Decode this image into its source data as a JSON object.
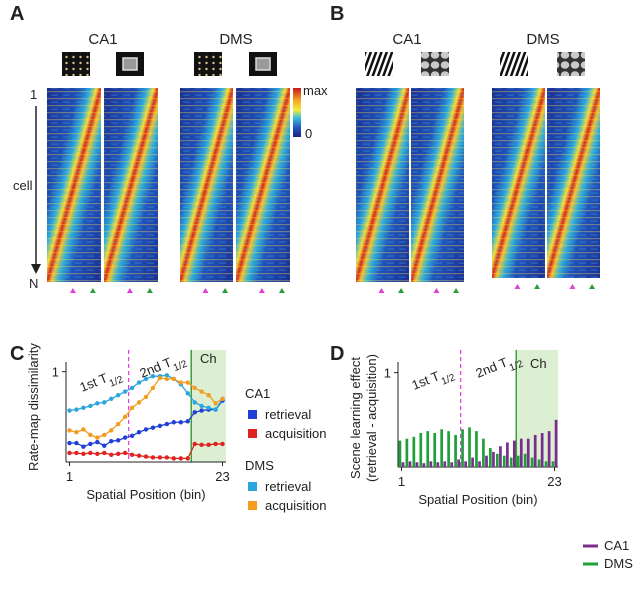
{
  "panel_a": {
    "label": "A",
    "groups": [
      "CA1",
      "DMS"
    ],
    "colorbar": {
      "max": "max",
      "min": "0"
    },
    "cell_axis": {
      "first": "1",
      "label": "cell",
      "last": "N"
    }
  },
  "panel_b": {
    "label": "B",
    "groups": [
      "CA1",
      "DMS"
    ]
  },
  "chart_data": [
    {
      "panel_label": "C",
      "type": "line",
      "x": [
        1,
        2,
        3,
        4,
        5,
        6,
        7,
        8,
        9,
        10,
        11,
        12,
        13,
        14,
        15,
        16,
        17,
        18,
        19,
        20,
        21,
        22,
        23
      ],
      "xlim": [
        0.5,
        23.5
      ],
      "xticks": [
        1,
        23
      ],
      "ylim": [
        0,
        1.24
      ],
      "yticks": [
        1
      ],
      "xlabel": "Spatial Position (bin)",
      "ylabel": "Rate-map dissimilarity",
      "annotations": [
        {
          "text": "1st T",
          "sub": "1/2"
        },
        {
          "text": "2nd T",
          "sub": "1/2"
        },
        {
          "text": "Ch"
        }
      ],
      "half_line_x": 9.5,
      "choice_start_x": 18.5,
      "series_groups": [
        {
          "name": "CA1",
          "series": [
            {
              "name": "retrieval",
              "color": "#1f3fd6",
              "values": [
                0.21,
                0.21,
                0.17,
                0.2,
                0.22,
                0.18,
                0.23,
                0.24,
                0.27,
                0.29,
                0.33,
                0.36,
                0.38,
                0.4,
                0.42,
                0.44,
                0.44,
                0.45,
                0.55,
                0.57,
                0.58,
                0.58,
                0.68
              ]
            },
            {
              "name": "acquisition",
              "color": "#e0231f",
              "values": [
                0.1,
                0.1,
                0.09,
                0.1,
                0.09,
                0.1,
                0.08,
                0.09,
                0.1,
                0.08,
                0.07,
                0.06,
                0.05,
                0.05,
                0.05,
                0.04,
                0.04,
                0.04,
                0.2,
                0.19,
                0.19,
                0.2,
                0.2
              ]
            }
          ]
        },
        {
          "name": "DMS",
          "series": [
            {
              "name": "retrieval",
              "color": "#2aa5de",
              "values": [
                0.57,
                0.58,
                0.6,
                0.62,
                0.65,
                0.66,
                0.7,
                0.74,
                0.78,
                0.82,
                0.88,
                0.92,
                0.95,
                0.95,
                0.96,
                0.92,
                0.86,
                0.76,
                0.66,
                0.62,
                0.6,
                0.58,
                0.7
              ]
            },
            {
              "name": "acquisition",
              "color": "#f39c1f",
              "values": [
                0.35,
                0.33,
                0.36,
                0.3,
                0.27,
                0.3,
                0.35,
                0.42,
                0.5,
                0.6,
                0.66,
                0.72,
                0.82,
                0.93,
                0.92,
                0.92,
                0.88,
                0.88,
                0.82,
                0.78,
                0.74,
                0.65,
                0.7
              ]
            }
          ]
        }
      ]
    },
    {
      "panel_label": "D",
      "type": "bar",
      "x": [
        1,
        2,
        3,
        4,
        5,
        6,
        7,
        8,
        9,
        10,
        11,
        12,
        13,
        14,
        15,
        16,
        17,
        18,
        19,
        20,
        21,
        22,
        23
      ],
      "xlim": [
        0.5,
        23.5
      ],
      "xticks": [
        1,
        23
      ],
      "ylim": [
        0,
        1.24
      ],
      "yticks": [
        1
      ],
      "xlabel": "Spatial Position (bin)",
      "ylabel": [
        "Scene learning effect",
        "(retrieval - acquisition)"
      ],
      "annotations": [
        {
          "text": "1st T",
          "sub": "1/2"
        },
        {
          "text": "2nd T",
          "sub": "1/2"
        },
        {
          "text": "Ch"
        }
      ],
      "half_line_x": 9.5,
      "choice_start_x": 17.5,
      "series": [
        {
          "name": "CA1",
          "color": "#7b2d8e",
          "values": [
            0.05,
            0.06,
            0.05,
            0.04,
            0.06,
            0.05,
            0.06,
            0.05,
            0.08,
            0.06,
            0.1,
            0.06,
            0.12,
            0.16,
            0.22,
            0.26,
            0.28,
            0.3,
            0.3,
            0.34,
            0.36,
            0.38,
            0.5
          ]
        },
        {
          "name": "DMS",
          "color": "#1fa03a",
          "values": [
            0.28,
            0.3,
            0.32,
            0.36,
            0.38,
            0.36,
            0.4,
            0.38,
            0.34,
            0.4,
            0.42,
            0.38,
            0.3,
            0.2,
            0.14,
            0.12,
            0.1,
            0.12,
            0.14,
            0.1,
            0.08,
            0.06,
            0.06
          ]
        }
      ]
    }
  ]
}
